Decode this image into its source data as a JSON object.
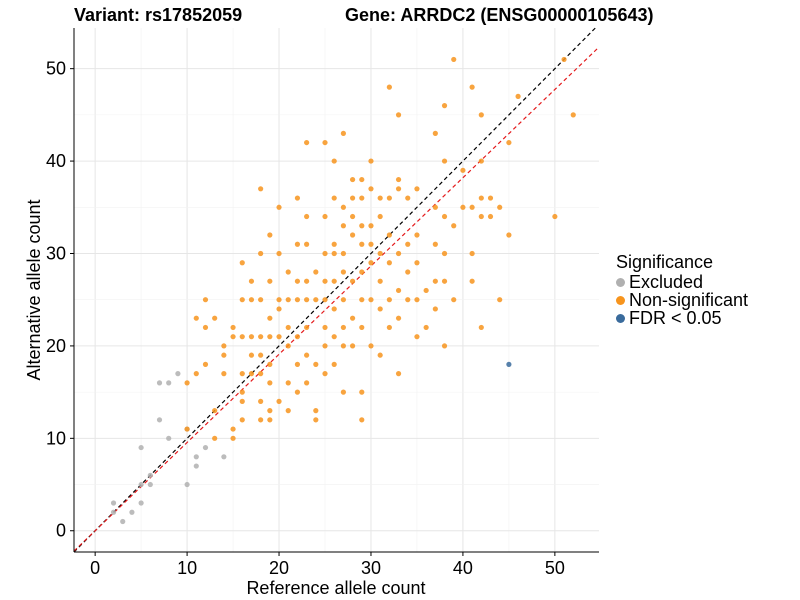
{
  "chart_data": {
    "type": "scatter",
    "title_variant": "Variant: rs17852059",
    "title_gene": "Gene: ARRDC2 (ENSG00000105643)",
    "xlabel": "Reference allele count",
    "ylabel": "Alternative allele count",
    "xlim": [
      -2.3,
      54.8
    ],
    "ylim": [
      -2.3,
      54.4
    ],
    "xticks": [
      0,
      10,
      20,
      30,
      40,
      50
    ],
    "yticks": [
      0,
      10,
      20,
      30,
      40,
      50
    ],
    "reference_lines": [
      {
        "name": "identity",
        "slope": 1.0,
        "intercept": 0,
        "color": "#000000",
        "dash": "dashed"
      },
      {
        "name": "fit",
        "slope": 0.955,
        "intercept": 0,
        "color": "#e41a1c",
        "dash": "dashed"
      }
    ],
    "legend": {
      "title": "Significance",
      "items": [
        {
          "label": "Excluded",
          "color": "#b0b0b0"
        },
        {
          "label": "Non-significant",
          "color": "#f7941d"
        },
        {
          "label": "FDR < 0.05",
          "color": "#3a6b9c"
        }
      ]
    },
    "series": [
      {
        "name": "Excluded",
        "color": "#b0b0b0",
        "points": [
          [
            2,
            3
          ],
          [
            2,
            2
          ],
          [
            3,
            1
          ],
          [
            4,
            2
          ],
          [
            5,
            9
          ],
          [
            5,
            5
          ],
          [
            5,
            3
          ],
          [
            6,
            6
          ],
          [
            6,
            5
          ],
          [
            7,
            16
          ],
          [
            7,
            12
          ],
          [
            8,
            16
          ],
          [
            8,
            10
          ],
          [
            9,
            17
          ],
          [
            10,
            5
          ],
          [
            10,
            11
          ],
          [
            11,
            8
          ],
          [
            11,
            7
          ],
          [
            12,
            9
          ],
          [
            14,
            8
          ]
        ]
      },
      {
        "name": "Non-significant",
        "color": "#f7941d",
        "points": [
          [
            10,
            16
          ],
          [
            10,
            11
          ],
          [
            11,
            23
          ],
          [
            11,
            17
          ],
          [
            12,
            25
          ],
          [
            12,
            22
          ],
          [
            12,
            18
          ],
          [
            13,
            23
          ],
          [
            13,
            13
          ],
          [
            13,
            10
          ],
          [
            14,
            20
          ],
          [
            14,
            17
          ],
          [
            15,
            11
          ],
          [
            15,
            10
          ],
          [
            15,
            21
          ],
          [
            16,
            29
          ],
          [
            16,
            25
          ],
          [
            16,
            21
          ],
          [
            16,
            17
          ],
          [
            16,
            15
          ],
          [
            16,
            14
          ],
          [
            16,
            12
          ],
          [
            17,
            27
          ],
          [
            17,
            25
          ],
          [
            17,
            21
          ],
          [
            17,
            17
          ],
          [
            18,
            37
          ],
          [
            18,
            30
          ],
          [
            18,
            25
          ],
          [
            18,
            21
          ],
          [
            18,
            19
          ],
          [
            18,
            17
          ],
          [
            18,
            14
          ],
          [
            18,
            12
          ],
          [
            19,
            32
          ],
          [
            19,
            27
          ],
          [
            19,
            23
          ],
          [
            19,
            21
          ],
          [
            19,
            18
          ],
          [
            19,
            13
          ],
          [
            19,
            12
          ],
          [
            20,
            35
          ],
          [
            20,
            30
          ],
          [
            20,
            25
          ],
          [
            20,
            21
          ],
          [
            20,
            14
          ],
          [
            21,
            28
          ],
          [
            21,
            25
          ],
          [
            21,
            22
          ],
          [
            21,
            20
          ],
          [
            21,
            16
          ],
          [
            21,
            13
          ],
          [
            22,
            36
          ],
          [
            22,
            31
          ],
          [
            22,
            27
          ],
          [
            22,
            25
          ],
          [
            22,
            21
          ],
          [
            22,
            18
          ],
          [
            23,
            42
          ],
          [
            23,
            34
          ],
          [
            23,
            31
          ],
          [
            23,
            27
          ],
          [
            23,
            25
          ],
          [
            23,
            22
          ],
          [
            23,
            19
          ],
          [
            23,
            16
          ],
          [
            24,
            13
          ],
          [
            24,
            12
          ],
          [
            24,
            18
          ],
          [
            24,
            25
          ],
          [
            25,
            42
          ],
          [
            25,
            34
          ],
          [
            25,
            30
          ],
          [
            25,
            27
          ],
          [
            25,
            25
          ],
          [
            25,
            22
          ],
          [
            25,
            20
          ],
          [
            25,
            17
          ],
          [
            26,
            40
          ],
          [
            26,
            36
          ],
          [
            26,
            31
          ],
          [
            26,
            27
          ],
          [
            26,
            24
          ],
          [
            26,
            21
          ],
          [
            26,
            18
          ],
          [
            27,
            43
          ],
          [
            27,
            35
          ],
          [
            27,
            33
          ],
          [
            27,
            30
          ],
          [
            27,
            28
          ],
          [
            27,
            25
          ],
          [
            27,
            22
          ],
          [
            27,
            20
          ],
          [
            28,
            38
          ],
          [
            28,
            36
          ],
          [
            28,
            32
          ],
          [
            28,
            27
          ],
          [
            28,
            23
          ],
          [
            28,
            20
          ],
          [
            29,
            38
          ],
          [
            29,
            36
          ],
          [
            29,
            33
          ],
          [
            29,
            31
          ],
          [
            29,
            28
          ],
          [
            29,
            25
          ],
          [
            29,
            22
          ],
          [
            29,
            15
          ],
          [
            29,
            12
          ],
          [
            30,
            40
          ],
          [
            30,
            37
          ],
          [
            30,
            33
          ],
          [
            30,
            31
          ],
          [
            30,
            29
          ],
          [
            30,
            25
          ],
          [
            30,
            20
          ],
          [
            31,
            36
          ],
          [
            31,
            34
          ],
          [
            31,
            30
          ],
          [
            31,
            27
          ],
          [
            31,
            24
          ],
          [
            31,
            19
          ],
          [
            32,
            48
          ],
          [
            32,
            36
          ],
          [
            32,
            32
          ],
          [
            32,
            29
          ],
          [
            32,
            25
          ],
          [
            32,
            22
          ],
          [
            33,
            45
          ],
          [
            33,
            38
          ],
          [
            33,
            37
          ],
          [
            33,
            30
          ],
          [
            33,
            26
          ],
          [
            33,
            23
          ],
          [
            33,
            17
          ],
          [
            34,
            36
          ],
          [
            34,
            31
          ],
          [
            34,
            28
          ],
          [
            34,
            25
          ],
          [
            35,
            37
          ],
          [
            35,
            32
          ],
          [
            35,
            29
          ],
          [
            35,
            25
          ],
          [
            35,
            21
          ],
          [
            36,
            26
          ],
          [
            37,
            43
          ],
          [
            37,
            35
          ],
          [
            37,
            31
          ],
          [
            37,
            27
          ],
          [
            38,
            46
          ],
          [
            38,
            40
          ],
          [
            38,
            34
          ],
          [
            38,
            30
          ],
          [
            38,
            27
          ],
          [
            38,
            20
          ],
          [
            39,
            51
          ],
          [
            39,
            33
          ],
          [
            39,
            25
          ],
          [
            40,
            39
          ],
          [
            40,
            35
          ],
          [
            41,
            48
          ],
          [
            41,
            35
          ],
          [
            41,
            30
          ],
          [
            41,
            27
          ],
          [
            42,
            45
          ],
          [
            42,
            40
          ],
          [
            42,
            36
          ],
          [
            42,
            34
          ],
          [
            42,
            22
          ],
          [
            43,
            36
          ],
          [
            43,
            34
          ],
          [
            44,
            35
          ],
          [
            44,
            25
          ],
          [
            45,
            42
          ],
          [
            45,
            32
          ],
          [
            46,
            47
          ],
          [
            50,
            34
          ],
          [
            51,
            51
          ],
          [
            52,
            45
          ],
          [
            36,
            22
          ],
          [
            37,
            24
          ],
          [
            24,
            28
          ],
          [
            20,
            24
          ],
          [
            22,
            15
          ],
          [
            27,
            15
          ],
          [
            17,
            19
          ],
          [
            19,
            16
          ],
          [
            14,
            19
          ],
          [
            15,
            22
          ],
          [
            26,
            30
          ],
          [
            28,
            34
          ]
        ]
      },
      {
        "name": "FDR < 0.05",
        "color": "#3a6b9c",
        "points": [
          [
            45,
            18
          ]
        ]
      }
    ]
  }
}
